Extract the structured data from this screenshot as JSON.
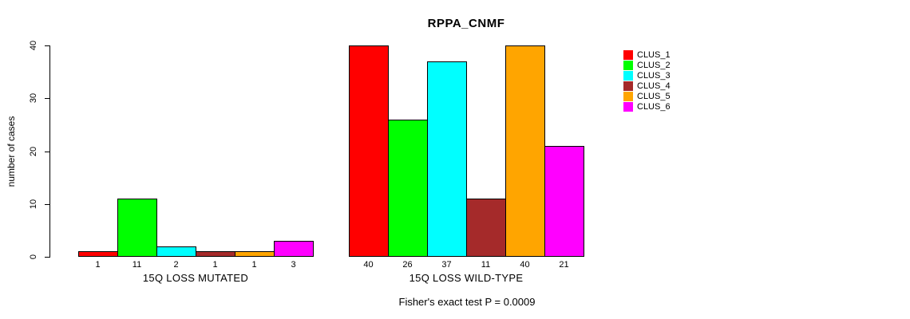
{
  "chart_data": {
    "type": "bar",
    "title": "RPPA_CNMF",
    "ylabel": "number of cases",
    "ylim": [
      0,
      40
    ],
    "yticks": [
      0,
      10,
      20,
      30,
      40
    ],
    "grid": false,
    "legend_position": "right",
    "legend": [
      {
        "name": "CLUS_1",
        "color": "#FF0000"
      },
      {
        "name": "CLUS_2",
        "color": "#00FF00"
      },
      {
        "name": "CLUS_3",
        "color": "#00FFFF"
      },
      {
        "name": "CLUS_4",
        "color": "#A52A2A"
      },
      {
        "name": "CLUS_5",
        "color": "#FFA500"
      },
      {
        "name": "CLUS_6",
        "color": "#FF00FF"
      }
    ],
    "groups": [
      {
        "label": "15Q LOSS MUTATED",
        "values": [
          1,
          11,
          2,
          1,
          1,
          3
        ]
      },
      {
        "label": "15Q LOSS WILD-TYPE",
        "values": [
          40,
          26,
          37,
          11,
          40,
          21
        ]
      }
    ],
    "annotation": "Fisher's exact test P = 0.0009"
  }
}
